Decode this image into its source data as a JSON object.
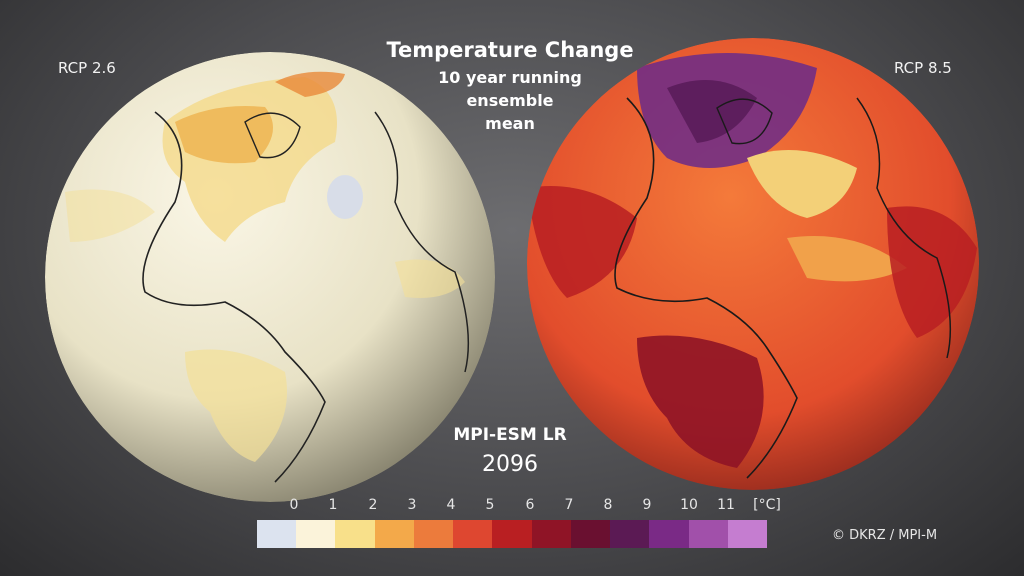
{
  "title": "Temperature Change",
  "subtitle_lines": [
    "10 year running",
    "ensemble",
    "mean"
  ],
  "left_scenario": "RCP 2.6",
  "right_scenario": "RCP 8.5",
  "model": "MPI-ESM LR",
  "year": "2096",
  "credit": "© DKRZ / MPI-M",
  "legend": {
    "ticks": [
      "0",
      "1",
      "2",
      "3",
      "4",
      "5",
      "6",
      "7",
      "8",
      "9",
      "10",
      "11"
    ],
    "unit": "[°C]",
    "colors": [
      "#dce3ef",
      "#fbf3da",
      "#f8e08a",
      "#f3a94a",
      "#ec7b3c",
      "#de4730",
      "#b91f22",
      "#8f1426",
      "#6a1030",
      "#5b1a54",
      "#7a2a86",
      "#a150aa",
      "#c57dd0"
    ]
  }
}
